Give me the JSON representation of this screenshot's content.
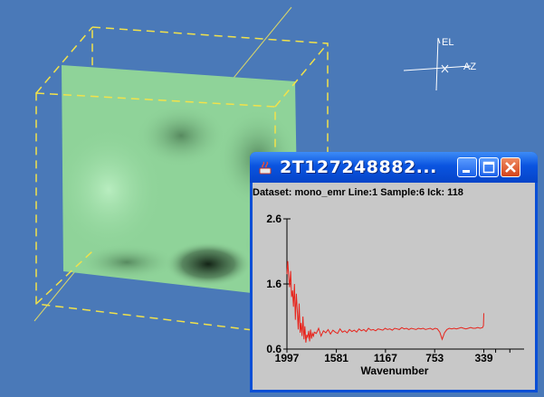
{
  "scene": {
    "background": "#4a79b8",
    "surface_color": "#8fd399",
    "box_line_color": "#f2e24a",
    "orientation_labels": {
      "elevation": "EL",
      "azimuth": "AZ"
    }
  },
  "window": {
    "title": "2T127248882...",
    "title_bar_color": "#0a54e0",
    "dataset_info": "Dataset: mono_emr Line:1 Sample:6 Ick: 118",
    "buttons": {
      "minimize": "minimize-icon",
      "maximize": "maximize-icon",
      "close": "close-icon"
    }
  },
  "chart_data": {
    "type": "line",
    "title": "",
    "xlabel": "Wavenumber",
    "ylabel": "",
    "xlim": [
      1997,
      0
    ],
    "ylim": [
      0.6,
      2.6
    ],
    "x_ticks": [
      "1997",
      "1581",
      "1167",
      "753",
      "339"
    ],
    "x_tick_values": [
      1997,
      1581,
      1167,
      753,
      339
    ],
    "y_ticks": [
      "0.6",
      "1.6",
      "2.6"
    ],
    "y_tick_values": [
      0.6,
      1.6,
      2.6
    ],
    "line_color": "#e8231b",
    "series": [
      {
        "x": [
          1997,
          1990,
          1982,
          1974,
          1966,
          1958,
          1950,
          1942,
          1934,
          1926,
          1918,
          1910,
          1902,
          1894,
          1886,
          1878,
          1870,
          1862,
          1854,
          1846,
          1838,
          1830,
          1822,
          1814,
          1806,
          1798,
          1790,
          1782,
          1774,
          1766,
          1750,
          1730,
          1710,
          1690,
          1670,
          1650,
          1630,
          1610,
          1590,
          1570,
          1550,
          1530,
          1510,
          1490,
          1470,
          1450,
          1430,
          1410,
          1390,
          1370,
          1350,
          1330,
          1310,
          1290,
          1270,
          1250,
          1230,
          1210,
          1190,
          1170,
          1150,
          1130,
          1110,
          1090,
          1070,
          1050,
          1030,
          1010,
          990,
          970,
          950,
          930,
          910,
          890,
          870,
          850,
          830,
          810,
          790,
          770,
          750,
          730,
          710,
          690,
          670,
          650,
          630,
          610,
          590,
          570,
          550,
          530,
          510,
          490,
          470,
          450,
          430,
          410,
          390,
          370,
          350,
          342,
          339
        ],
        "y": [
          1.75,
          1.95,
          1.7,
          1.55,
          1.8,
          1.4,
          1.5,
          1.25,
          1.6,
          1.05,
          1.45,
          1.2,
          0.9,
          1.3,
          0.85,
          1.0,
          0.8,
          1.1,
          0.75,
          0.95,
          0.7,
          0.82,
          0.78,
          0.88,
          0.72,
          0.9,
          0.76,
          0.84,
          0.8,
          0.86,
          0.84,
          0.92,
          0.8,
          0.88,
          0.85,
          0.9,
          0.83,
          0.89,
          0.86,
          0.84,
          0.91,
          0.86,
          0.88,
          0.85,
          0.9,
          0.87,
          0.89,
          0.86,
          0.91,
          0.88,
          0.9,
          0.87,
          0.92,
          0.89,
          0.9,
          0.88,
          0.91,
          0.9,
          0.89,
          0.92,
          0.9,
          0.91,
          0.89,
          0.92,
          0.91,
          0.9,
          0.93,
          0.91,
          0.92,
          0.9,
          0.92,
          0.91,
          0.9,
          0.92,
          0.91,
          0.92,
          0.9,
          0.91,
          0.92,
          0.9,
          0.92,
          0.91,
          0.86,
          0.75,
          0.85,
          0.9,
          0.92,
          0.91,
          0.92,
          0.91,
          0.92,
          0.93,
          0.92,
          0.91,
          0.92,
          0.93,
          0.92,
          0.92,
          0.93,
          0.92,
          0.93,
          0.96,
          1.15
        ]
      }
    ]
  }
}
